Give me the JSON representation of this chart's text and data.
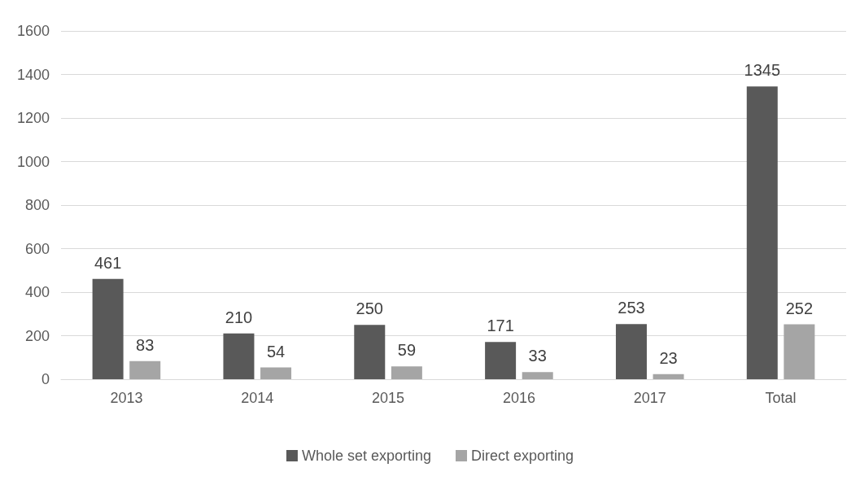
{
  "chart_data": {
    "type": "bar",
    "categories": [
      "2013",
      "2014",
      "2015",
      "2016",
      "2017",
      "Total"
    ],
    "series": [
      {
        "name": "Whole set exporting",
        "color": "#595959",
        "values": [
          461,
          210,
          250,
          171,
          253,
          1345
        ]
      },
      {
        "name": "Direct exporting",
        "color": "#a5a5a5",
        "values": [
          83,
          54,
          59,
          33,
          23,
          252
        ]
      }
    ],
    "ylim": [
      0,
      1600
    ],
    "yticks": [
      0,
      200,
      400,
      600,
      800,
      1000,
      1200,
      1400,
      1600
    ],
    "grid": "y",
    "legend": "bottom",
    "data_labels": true
  }
}
